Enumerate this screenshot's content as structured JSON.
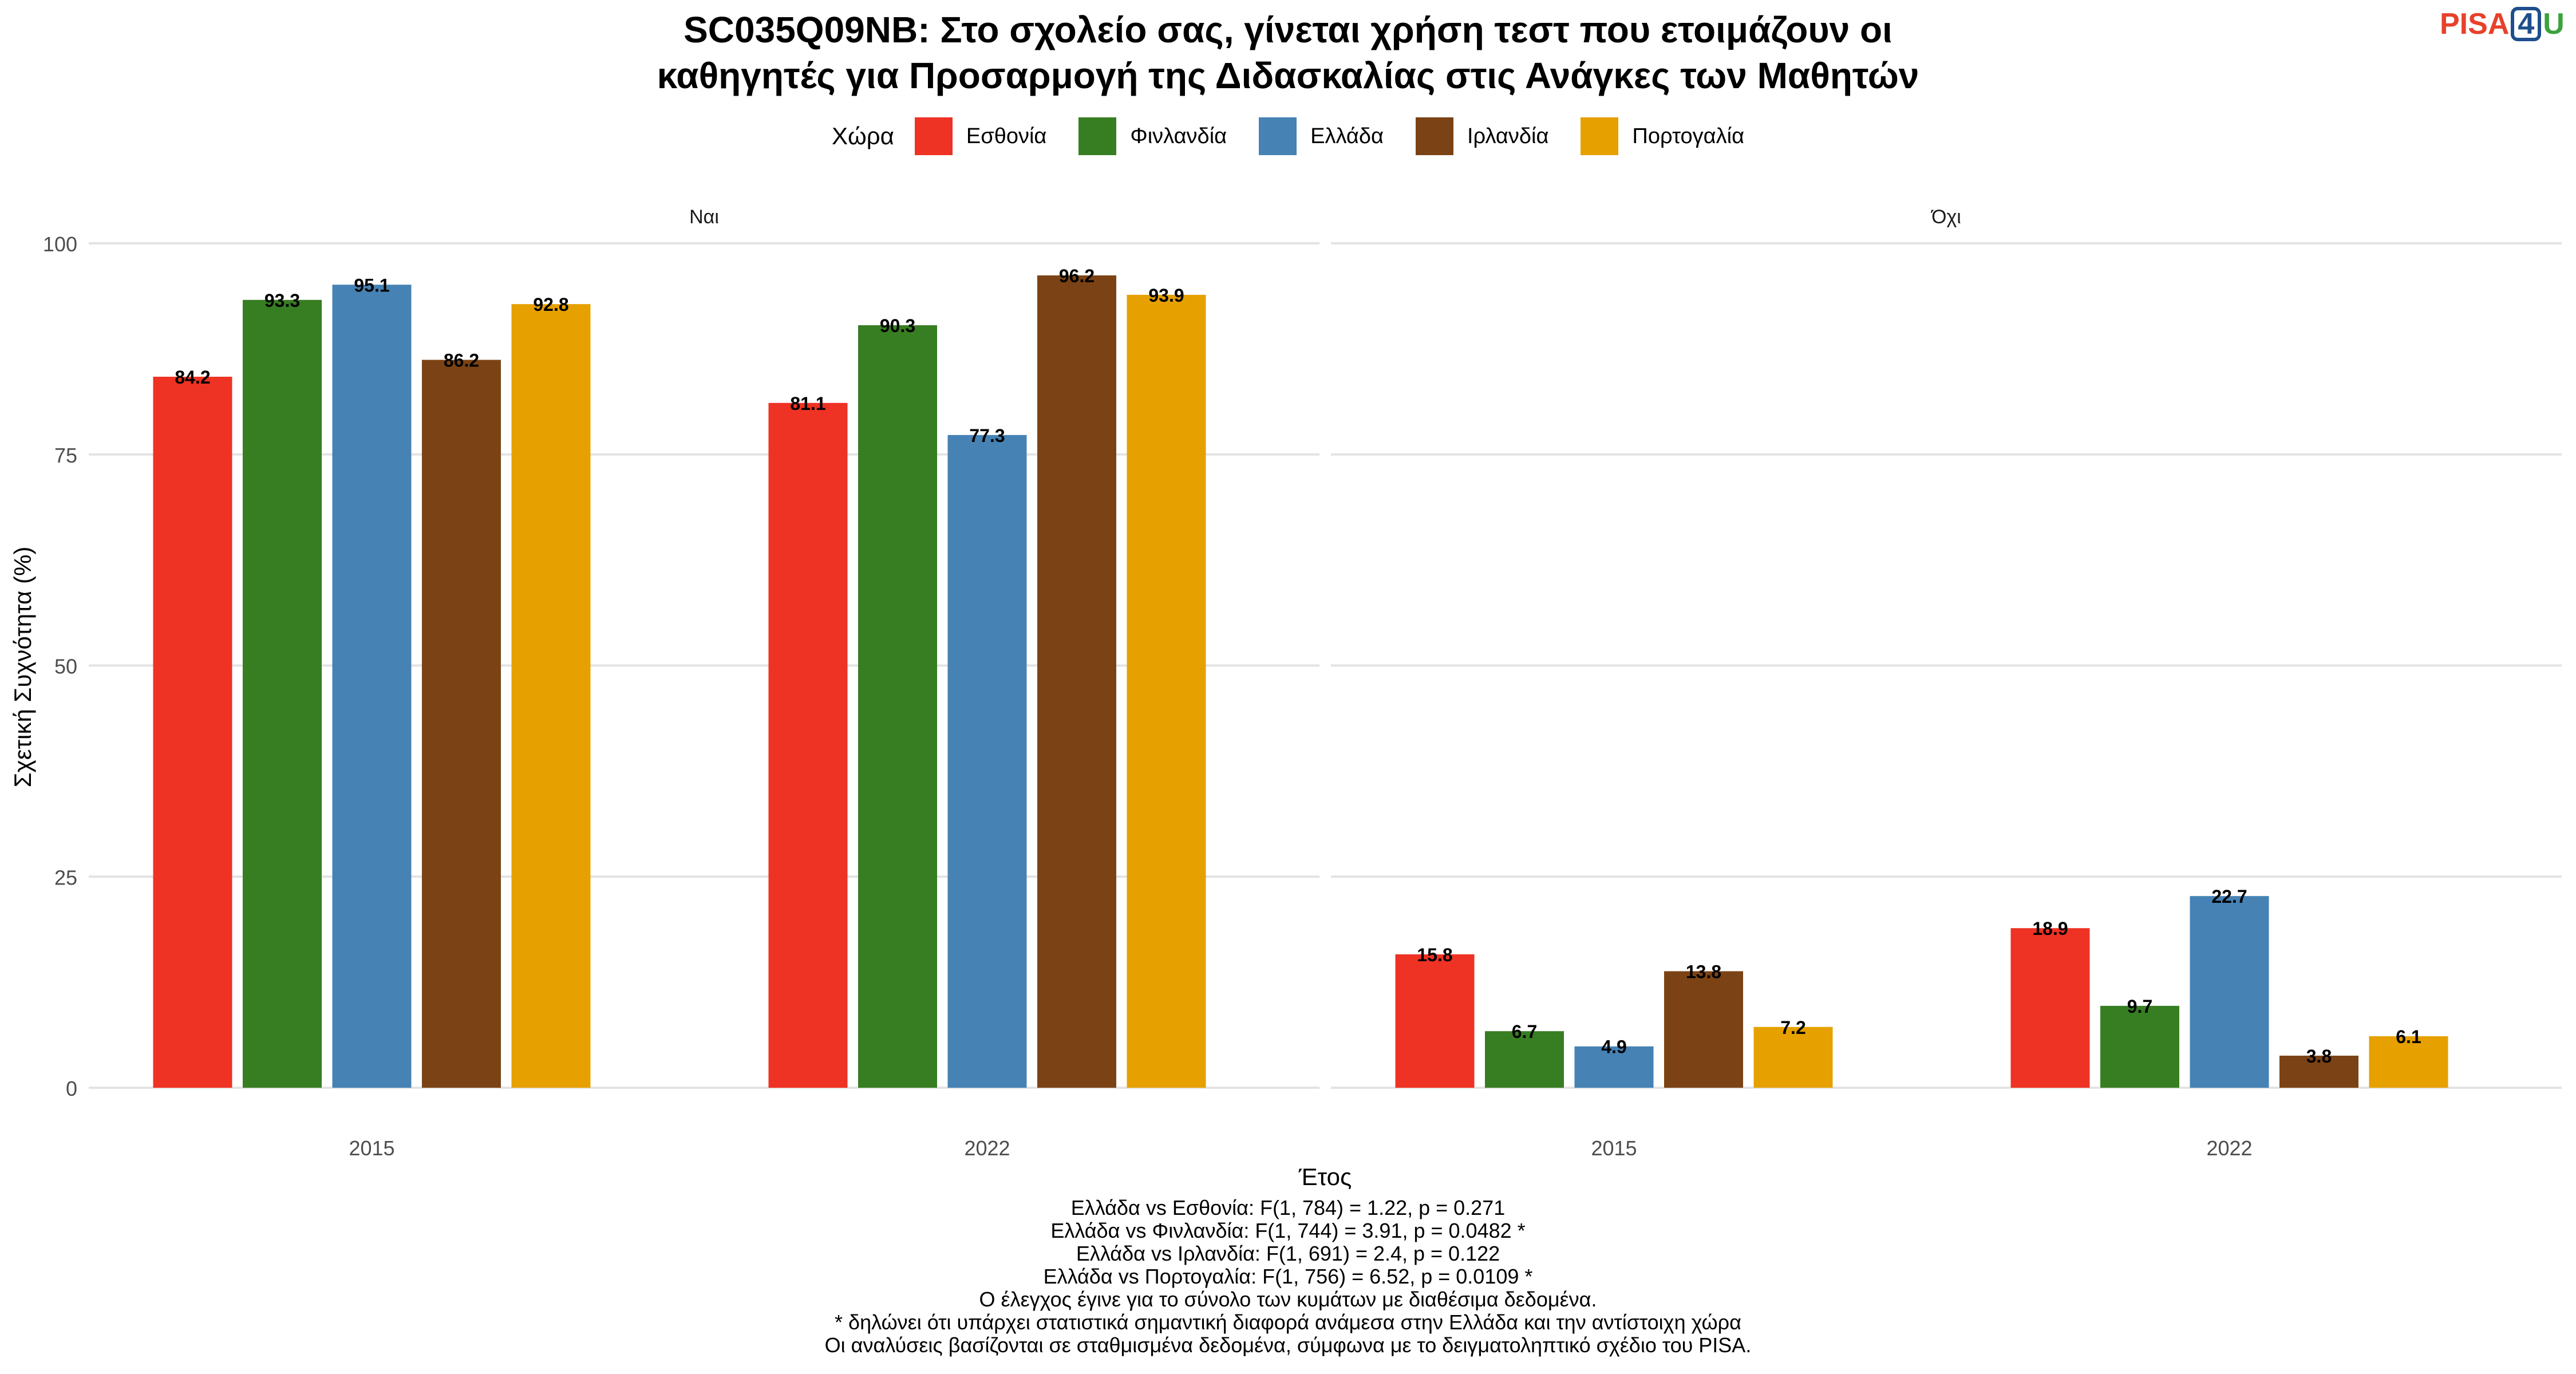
{
  "chart_data": {
    "type": "bar",
    "title": [
      "SC035Q09NB: Στο σχολείο σας, γίνεται χρήση τεστ που ετοιμάζουν οι",
      "καθηγητές για Προσαρμογή της Διδασκαλίας στις Ανάγκες των Μαθητών"
    ],
    "xlabel": "Έτος",
    "ylabel": "Σχετική Συχνότητα (%)",
    "ylim": [
      0,
      100
    ],
    "yticks": [
      0,
      25,
      50,
      75,
      100
    ],
    "grid": true,
    "legend_title": "Χώρα",
    "legend_position": "top",
    "categories": [
      "2015",
      "2022"
    ],
    "countries": [
      {
        "name": "Εσθονία",
        "color": "#ee3224"
      },
      {
        "name": "Φινλανδία",
        "color": "#377e22"
      },
      {
        "name": "Ελλάδα",
        "color": "#4682b4"
      },
      {
        "name": "Ιρλανδία",
        "color": "#7b4315"
      },
      {
        "name": "Πορτογαλία",
        "color": "#e6a000"
      }
    ],
    "panels": [
      {
        "label": "Ναι",
        "series": [
          [
            84.2,
            93.3,
            95.1,
            86.2,
            92.8
          ],
          [
            81.1,
            90.3,
            77.3,
            96.2,
            93.9
          ]
        ]
      },
      {
        "label": "Όχι",
        "series": [
          [
            15.8,
            6.7,
            4.9,
            13.8,
            7.2
          ],
          [
            18.9,
            9.7,
            22.7,
            3.8,
            6.1
          ]
        ]
      }
    ]
  },
  "logo": {
    "pisa": "PISA",
    "four": "4",
    "u": "U"
  },
  "notes": [
    "Ελλάδα vs Εσθονία: F(1, 784) = 1.22, p = 0.271",
    "Ελλάδα vs Φινλανδία: F(1, 744) = 3.91, p = 0.0482 *",
    "Ελλάδα vs Ιρλανδία: F(1, 691) = 2.4, p = 0.122",
    "Ελλάδα vs Πορτογαλία: F(1, 756) = 6.52, p = 0.0109 *",
    "Ο έλεγχος έγινε για το σύνολο των κυμάτων με διαθέσιμα δεδομένα.",
    "* δηλώνει ότι υπάρχει στατιστικά σημαντική διαφορά ανάμεσα στην Ελλάδα και την αντίστοιχη χώρα",
    "Οι αναλύσεις βασίζονται σε σταθμισμένα δεδομένα, σύμφωνα με το δειγματοληπτικό σχέδιο του PISA."
  ]
}
